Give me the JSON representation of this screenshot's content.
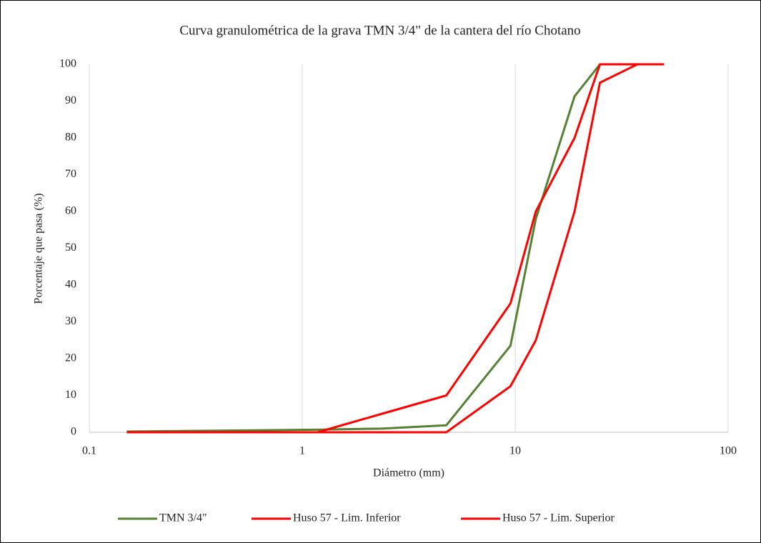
{
  "chart_data": {
    "type": "line",
    "title": "Curva granulométrica de la grava TMN 3/4\" de la cantera del río Chotano",
    "x_label": "Diámetro (mm)",
    "y_label": "Porcentaje que pasa (%)",
    "xscale": "log",
    "xlim": [
      0.1,
      100
    ],
    "xticks": [
      0.1,
      1,
      10,
      100
    ],
    "ylim": [
      0,
      100
    ],
    "yticks": [
      0,
      10,
      20,
      30,
      40,
      50,
      60,
      70,
      80,
      90,
      100
    ],
    "xgrid": true,
    "legend": "bottom",
    "series": [
      {
        "name": "TMN 3/4\"",
        "color": "#548235",
        "x": [
          0.15,
          1.18,
          2.36,
          4.75,
          9.5,
          12.5,
          19,
          25
        ],
        "values": [
          0.2,
          0.7,
          1.0,
          1.9,
          23.5,
          58,
          91.3,
          100
        ]
      },
      {
        "name": "Huso 57 - Lim. Inferior",
        "color": "#ff0000",
        "x": [
          0.15,
          1.18,
          4.75,
          9.5,
          12.5,
          19,
          25,
          37.5,
          50
        ],
        "values": [
          0,
          0,
          0,
          12.5,
          25,
          60,
          95,
          100,
          100
        ]
      },
      {
        "name": "Huso 57 - Lim. Superior",
        "color": "#ff0000",
        "x": [
          0.15,
          1.18,
          2.36,
          4.75,
          9.5,
          12.5,
          19,
          25,
          37.5,
          50
        ],
        "values": [
          0,
          0,
          5,
          10,
          35,
          60,
          80,
          100,
          100,
          100
        ]
      }
    ]
  }
}
